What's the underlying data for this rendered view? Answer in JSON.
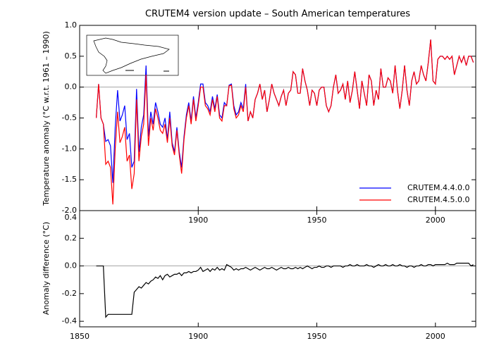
{
  "chart_data": [
    {
      "type": "line",
      "title": "CRUTEM4 version update – South American temperatures",
      "ylabel": "Temperature anomaly (°C w.r.t. 1961 – 1990)",
      "xlim": [
        1850,
        2017
      ],
      "xticks": [
        1900,
        1950,
        2000
      ],
      "ylim": [
        -2,
        1
      ],
      "yticks": [
        {
          "value": 1,
          "label": "1.0"
        },
        0.5,
        {
          "value": 0,
          "label": "0.0"
        },
        -0.5,
        {
          "value": -1,
          "label": "-1.0"
        },
        -1.5,
        {
          "value": -2,
          "label": "-2.0"
        }
      ],
      "legend": "lower right",
      "x": [
        1857,
        1858,
        1859,
        1860,
        1861,
        1862,
        1863,
        1864,
        1865,
        1866,
        1867,
        1868,
        1869,
        1870,
        1871,
        1872,
        1873,
        1874,
        1875,
        1876,
        1877,
        1878,
        1879,
        1880,
        1881,
        1882,
        1883,
        1884,
        1885,
        1886,
        1887,
        1888,
        1889,
        1890,
        1891,
        1892,
        1893,
        1894,
        1895,
        1896,
        1897,
        1898,
        1899,
        1900,
        1901,
        1902,
        1903,
        1904,
        1905,
        1906,
        1907,
        1908,
        1909,
        1910,
        1911,
        1912,
        1913,
        1914,
        1915,
        1916,
        1917,
        1918,
        1919,
        1920,
        1921,
        1922,
        1923,
        1924,
        1925,
        1926,
        1927,
        1928,
        1929,
        1930,
        1931,
        1932,
        1933,
        1934,
        1935,
        1936,
        1937,
        1938,
        1939,
        1940,
        1941,
        1942,
        1943,
        1944,
        1945,
        1946,
        1947,
        1948,
        1949,
        1950,
        1951,
        1952,
        1953,
        1954,
        1955,
        1956,
        1957,
        1958,
        1959,
        1960,
        1961,
        1962,
        1963,
        1964,
        1965,
        1966,
        1967,
        1968,
        1969,
        1970,
        1971,
        1972,
        1973,
        1974,
        1975,
        1976,
        1977,
        1978,
        1979,
        1980,
        1981,
        1982,
        1983,
        1984,
        1985,
        1986,
        1987,
        1988,
        1989,
        1990,
        1991,
        1992,
        1993,
        1994,
        1995,
        1996,
        1997,
        1998,
        1999,
        2000,
        2001,
        2002,
        2003,
        2004,
        2005,
        2006,
        2007,
        2008,
        2009,
        2010,
        2011,
        2012,
        2013,
        2014,
        2015,
        2016
      ],
      "series": [
        {
          "name": "CRUTEM.4.4.0.0",
          "color": "#0000ff",
          "values": [
            -0.5,
            0.05,
            -0.5,
            -0.6,
            -0.88,
            -0.85,
            -0.95,
            -1.55,
            -0.65,
            -0.05,
            -0.55,
            -0.45,
            -0.3,
            -0.85,
            -0.75,
            -1.3,
            -1.2,
            -0.03,
            -1.05,
            -0.65,
            -0.45,
            0.35,
            -0.8,
            -0.4,
            -0.6,
            -0.25,
            -0.4,
            -0.6,
            -0.65,
            -0.5,
            -0.85,
            -0.4,
            -0.9,
            -1.05,
            -0.65,
            -1.05,
            -1.3,
            -0.8,
            -0.45,
            -0.25,
            -0.55,
            -0.15,
            -0.5,
            -0.25,
            0.05,
            0.05,
            -0.25,
            -0.3,
            -0.4,
            -0.15,
            -0.35,
            -0.12,
            -0.45,
            -0.5,
            -0.25,
            -0.3,
            0.03,
            0.05,
            -0.3,
            -0.45,
            -0.4,
            -0.25,
            -0.35,
            0.05,
            -0.55,
            -0.4,
            -0.5,
            -0.2,
            -0.1,
            0.05,
            -0.2,
            -0.05,
            -0.4,
            -0.2,
            0.05,
            -0.1,
            -0.2,
            -0.3,
            -0.15,
            -0.05,
            -0.3,
            -0.1,
            -0.05,
            0.25,
            0.2,
            -0.1,
            -0.1,
            0.3,
            0.1,
            -0.05,
            -0.3,
            -0.05,
            -0.1,
            -0.3,
            -0.05,
            0.0,
            0.0,
            -0.3,
            -0.4,
            -0.3,
            0.0,
            0.2,
            -0.1,
            -0.05,
            0.05,
            -0.2,
            0.1,
            -0.25,
            -0.05,
            0.25,
            -0.05,
            -0.35,
            0.1,
            -0.1,
            -0.3,
            0.2,
            0.1,
            -0.3,
            -0.05,
            -0.2,
            0.3,
            0.0,
            0.0,
            0.15,
            0.1,
            -0.1,
            0.35,
            -0.05,
            -0.35,
            -0.05,
            0.35,
            -0.05,
            -0.3,
            0.1,
            0.25,
            0.05,
            0.1,
            0.35,
            0.2,
            0.1,
            0.4,
            0.77,
            0.1,
            0.05,
            0.45,
            0.5,
            0.5,
            0.45,
            0.5,
            0.45,
            0.5,
            0.2,
            0.35,
            0.5,
            0.4,
            0.5,
            0.35,
            0.5,
            0.5,
            0.4
          ]
        },
        {
          "name": "CRUTEM.4.5.0.0",
          "color": "#ff0000",
          "values": [
            -0.5,
            0.05,
            -0.5,
            -0.6,
            -1.25,
            -1.2,
            -1.3,
            -1.9,
            -1.0,
            -0.4,
            -0.9,
            -0.8,
            -0.65,
            -1.2,
            -1.1,
            -1.65,
            -1.4,
            -0.2,
            -1.2,
            -0.8,
            -0.6,
            0.2,
            -0.95,
            -0.5,
            -0.7,
            -0.35,
            -0.5,
            -0.7,
            -0.75,
            -0.6,
            -0.9,
            -0.5,
            -0.95,
            -1.1,
            -0.7,
            -1.1,
            -1.4,
            -0.85,
            -0.5,
            -0.3,
            -0.6,
            -0.2,
            -0.55,
            -0.3,
            0.0,
            0.0,
            -0.3,
            -0.35,
            -0.45,
            -0.2,
            -0.4,
            -0.15,
            -0.5,
            -0.55,
            -0.3,
            -0.3,
            0.02,
            0.03,
            -0.35,
            -0.5,
            -0.45,
            -0.3,
            -0.4,
            0.0,
            -0.55,
            -0.4,
            -0.5,
            -0.2,
            -0.1,
            0.05,
            -0.2,
            -0.05,
            -0.4,
            -0.2,
            0.05,
            -0.1,
            -0.2,
            -0.3,
            -0.15,
            -0.05,
            -0.3,
            -0.1,
            -0.05,
            0.25,
            0.2,
            -0.1,
            -0.1,
            0.3,
            0.1,
            -0.05,
            -0.3,
            -0.05,
            -0.1,
            -0.3,
            -0.05,
            0.0,
            0.0,
            -0.3,
            -0.4,
            -0.3,
            0.0,
            0.2,
            -0.1,
            -0.05,
            0.05,
            -0.2,
            0.1,
            -0.25,
            -0.05,
            0.25,
            -0.05,
            -0.35,
            0.1,
            -0.1,
            -0.3,
            0.2,
            0.1,
            -0.3,
            -0.05,
            -0.2,
            0.3,
            0.0,
            0.0,
            0.15,
            0.1,
            -0.1,
            0.35,
            -0.05,
            -0.35,
            -0.05,
            0.35,
            -0.05,
            -0.3,
            0.1,
            0.25,
            0.05,
            0.1,
            0.35,
            0.2,
            0.1,
            0.4,
            0.77,
            0.1,
            0.05,
            0.45,
            0.5,
            0.5,
            0.45,
            0.5,
            0.45,
            0.5,
            0.2,
            0.35,
            0.5,
            0.4,
            0.5,
            0.35,
            0.5,
            0.5,
            0.4
          ]
        }
      ]
    },
    {
      "type": "line",
      "ylabel": "Anomaly difference (°C)",
      "xlim": [
        1850,
        2017
      ],
      "xticks": [
        1850,
        1900,
        1950,
        2000
      ],
      "ylim": [
        -0.44,
        0.4
      ],
      "yticks": [
        0.4,
        0.2,
        {
          "value": 0,
          "label": "0.0"
        },
        -0.2,
        -0.4
      ],
      "x": [
        1857,
        1858,
        1859,
        1860,
        1861,
        1862,
        1863,
        1864,
        1865,
        1866,
        1867,
        1868,
        1869,
        1870,
        1871,
        1872,
        1873,
        1874,
        1875,
        1876,
        1877,
        1878,
        1879,
        1880,
        1881,
        1882,
        1883,
        1884,
        1885,
        1886,
        1887,
        1888,
        1889,
        1890,
        1891,
        1892,
        1893,
        1894,
        1895,
        1896,
        1897,
        1898,
        1899,
        1900,
        1901,
        1902,
        1903,
        1904,
        1905,
        1906,
        1907,
        1908,
        1909,
        1910,
        1911,
        1912,
        1913,
        1914,
        1915,
        1916,
        1917,
        1918,
        1919,
        1920,
        1921,
        1922,
        1923,
        1924,
        1925,
        1926,
        1927,
        1928,
        1929,
        1930,
        1931,
        1932,
        1933,
        1934,
        1935,
        1936,
        1937,
        1938,
        1939,
        1940,
        1941,
        1942,
        1943,
        1944,
        1945,
        1946,
        1947,
        1948,
        1949,
        1950,
        1951,
        1952,
        1953,
        1954,
        1955,
        1956,
        1957,
        1958,
        1959,
        1960,
        1961,
        1962,
        1963,
        1964,
        1965,
        1966,
        1967,
        1968,
        1969,
        1970,
        1971,
        1972,
        1973,
        1974,
        1975,
        1976,
        1977,
        1978,
        1979,
        1980,
        1981,
        1982,
        1983,
        1984,
        1985,
        1986,
        1987,
        1988,
        1989,
        1990,
        1991,
        1992,
        1993,
        1994,
        1995,
        1996,
        1997,
        1998,
        1999,
        2000,
        2001,
        2002,
        2003,
        2004,
        2005,
        2006,
        2007,
        2008,
        2009,
        2010,
        2011,
        2012,
        2013,
        2014,
        2015,
        2016
      ],
      "color": "#000000",
      "values": [
        0,
        0,
        0,
        0,
        -0.37,
        -0.35,
        -0.35,
        -0.35,
        -0.35,
        -0.35,
        -0.35,
        -0.35,
        -0.35,
        -0.35,
        -0.35,
        -0.35,
        -0.19,
        -0.17,
        -0.15,
        -0.16,
        -0.14,
        -0.12,
        -0.13,
        -0.11,
        -0.1,
        -0.08,
        -0.09,
        -0.07,
        -0.1,
        -0.07,
        -0.06,
        -0.08,
        -0.07,
        -0.06,
        -0.06,
        -0.05,
        -0.07,
        -0.05,
        -0.05,
        -0.04,
        -0.05,
        -0.04,
        -0.04,
        -0.03,
        -0.01,
        -0.04,
        -0.03,
        -0.02,
        -0.04,
        -0.02,
        -0.03,
        -0.01,
        -0.03,
        -0.02,
        -0.03,
        0.01,
        0.0,
        -0.01,
        -0.03,
        -0.02,
        -0.03,
        -0.02,
        -0.02,
        -0.01,
        -0.02,
        -0.03,
        -0.02,
        -0.01,
        -0.02,
        -0.03,
        -0.02,
        -0.01,
        -0.02,
        -0.02,
        -0.01,
        -0.02,
        -0.03,
        -0.02,
        -0.01,
        -0.02,
        -0.02,
        -0.01,
        -0.02,
        -0.02,
        -0.01,
        -0.02,
        -0.01,
        -0.02,
        -0.01,
        0.0,
        -0.01,
        -0.02,
        -0.01,
        -0.01,
        0.0,
        -0.01,
        -0.01,
        0.0,
        0.0,
        -0.01,
        0.0,
        0.0,
        0.0,
        0.0,
        -0.01,
        0.0,
        0.0,
        0.01,
        0.0,
        0.0,
        0.01,
        0.0,
        0.0,
        0.0,
        0.01,
        0.0,
        0.0,
        -0.01,
        0.0,
        0.01,
        0.0,
        0.0,
        0.01,
        0.0,
        0.0,
        0.01,
        0.0,
        0.0,
        0.01,
        0.0,
        0.0,
        -0.01,
        0.0,
        0.0,
        -0.01,
        0.0,
        0.0,
        0.01,
        0.0,
        0.0,
        0.01,
        0.01,
        0.0,
        0.01,
        0.01,
        0.01,
        0.01,
        0.01,
        0.02,
        0.01,
        0.01,
        0.01,
        0.02,
        0.02,
        0.02,
        0.02,
        0.02,
        0.02,
        0.0,
        0.01
      ]
    }
  ]
}
